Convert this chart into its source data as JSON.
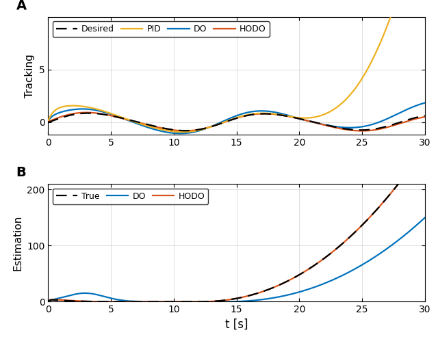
{
  "title_A": "A",
  "title_B": "B",
  "ylabel_A": "Tracking",
  "ylabel_B": "Estimation",
  "xlabel": "t [s]",
  "xlim": [
    0,
    30
  ],
  "ylim_A": [
    -1.2,
    10
  ],
  "ylim_B": [
    0,
    210
  ],
  "yticks_A": [
    0,
    5
  ],
  "yticks_B": [
    0,
    100,
    200
  ],
  "xticks": [
    0,
    5,
    10,
    15,
    20,
    25,
    30
  ],
  "colors": {
    "desired": "#000000",
    "pid": "#EDB120",
    "do": "#0072BD",
    "hodo": "#D95319"
  },
  "legend_A": [
    "Desired",
    "PID",
    "DO",
    "HODO"
  ],
  "legend_B": [
    "True",
    "DO",
    "HODO"
  ],
  "figsize": [
    6.4,
    4.96
  ],
  "dpi": 100,
  "lw": 1.6
}
